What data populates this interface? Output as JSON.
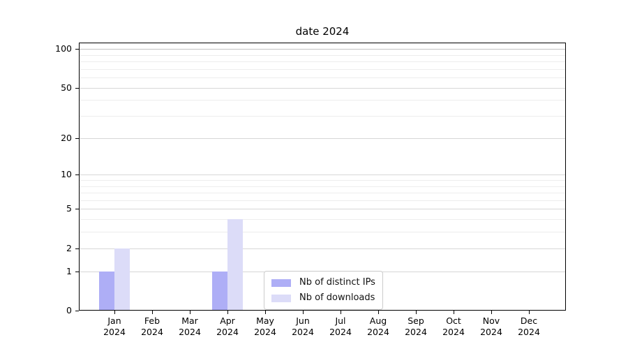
{
  "chart_data": {
    "type": "bar",
    "title": "date 2024",
    "categories": [
      "Jan 2024",
      "Feb 2024",
      "Mar 2024",
      "Apr 2024",
      "May 2024",
      "Jun 2024",
      "Jul 2024",
      "Aug 2024",
      "Sep 2024",
      "Oct 2024",
      "Nov 2024",
      "Dec 2024"
    ],
    "x": {
      "months": [
        "Jan",
        "Feb",
        "Mar",
        "Apr",
        "May",
        "Jun",
        "Jul",
        "Aug",
        "Sep",
        "Oct",
        "Nov",
        "Dec"
      ],
      "year": "2024"
    },
    "series": [
      {
        "name": "Nb of distinct IPs",
        "color": "#aeaef6",
        "values": [
          1,
          0,
          0,
          1,
          0,
          0,
          0,
          0,
          0,
          0,
          0,
          0
        ]
      },
      {
        "name": "Nb of downloads",
        "color": "#dcdcf8",
        "values": [
          2,
          0,
          0,
          4,
          0,
          0,
          0,
          0,
          0,
          0,
          0,
          0
        ]
      }
    ],
    "y_axis": {
      "scale": "log1p",
      "tick_values": [
        100,
        50,
        20,
        10,
        5,
        2,
        1,
        0
      ],
      "tick_labels": [
        "100",
        "50",
        "20",
        "10",
        "5",
        "2",
        "1",
        "0"
      ],
      "minor_gridline_values": [
        3,
        4,
        6,
        7,
        8,
        9,
        30,
        40,
        60,
        70,
        80,
        90
      ],
      "ylim": [
        0,
        112
      ]
    },
    "grid": true,
    "legend": {
      "position": "inside-bottom-center",
      "entries": [
        "Nb of distinct IPs",
        "Nb of downloads"
      ]
    },
    "colors": {
      "axis": "#000000",
      "grid_major": "#d7d7d7",
      "grid_minor": "#ededed",
      "legend_border": "#cccccc"
    }
  }
}
